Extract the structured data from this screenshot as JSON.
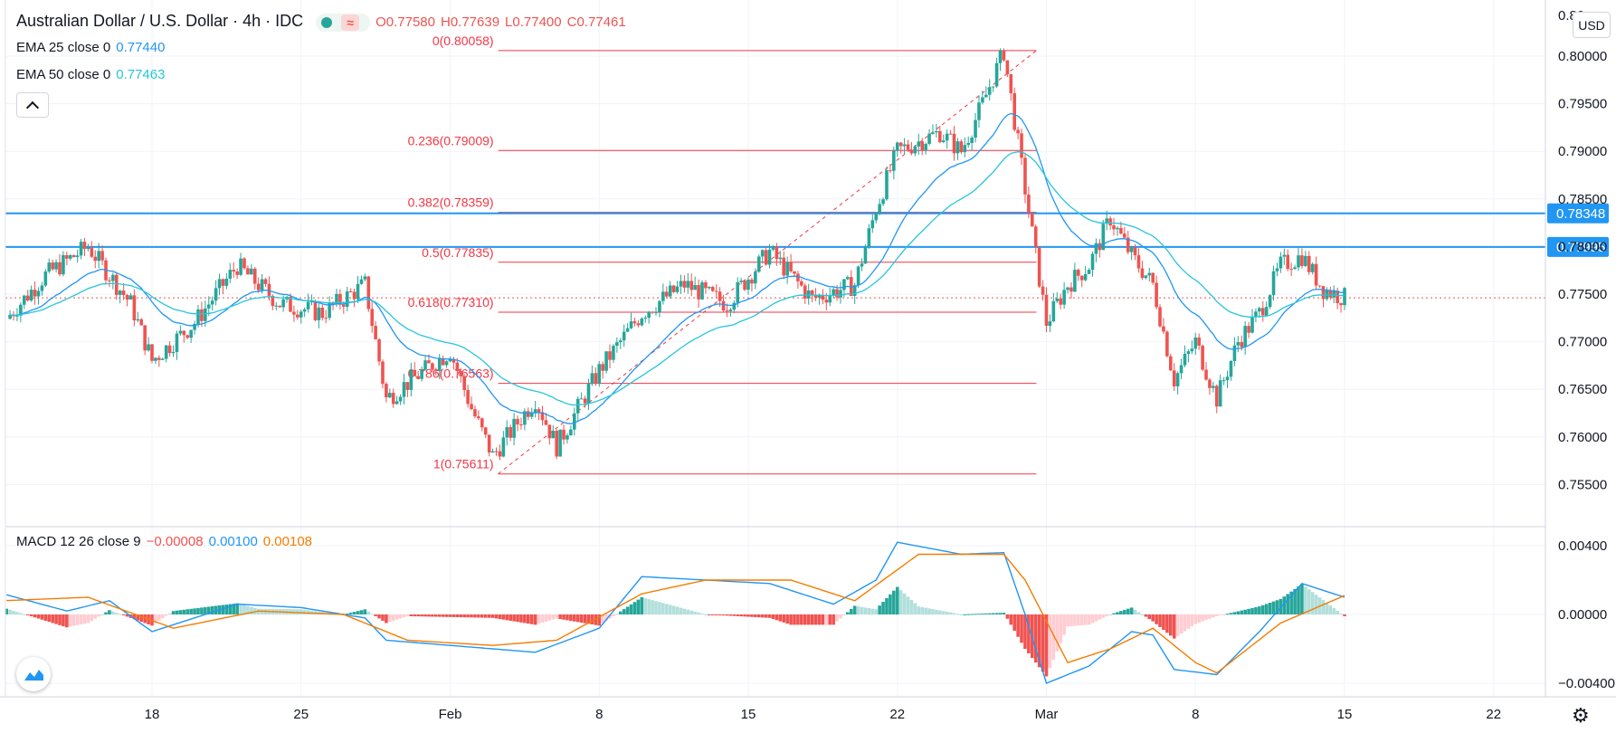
{
  "header": {
    "symbol": "Australian Dollar / U.S. Dollar · 4h · IDC",
    "open": "O0.77580",
    "high": "H0.77639",
    "low": "L0.77400",
    "close": "C0.77461"
  },
  "indicators": {
    "ema25": {
      "label": "EMA 25 close 0",
      "value": "0.77440",
      "color": "#2196f3"
    },
    "ema50": {
      "label": "EMA 50 close 0",
      "value": "0.77463",
      "color": "#26c6da"
    },
    "macd": {
      "label": "MACD 12 26 close 9",
      "hist": "−0.00008",
      "macd_value": "0.00100",
      "signal_value": "0.00108",
      "macd_color": "#2196f3",
      "signal_color": "#f57c00"
    }
  },
  "price_axis": {
    "currency": "USD",
    "top_clip_label": "0.80",
    "ticks": [
      "0.80000",
      "0.79500",
      "0.79000",
      "0.78500",
      "0.78000",
      "0.77500",
      "0.77000",
      "0.76500",
      "0.76000",
      "0.75500"
    ],
    "badges": [
      {
        "text": "0.78348",
        "value": 0.78348
      },
      {
        "text": "0.77995",
        "value": 0.77995
      }
    ]
  },
  "macd_axis": {
    "ticks": [
      "0.00400",
      "0.00000",
      "−0.00400"
    ]
  },
  "time_axis": {
    "labels": [
      "18",
      "25",
      "Feb",
      "8",
      "15",
      "22",
      "Mar",
      "8",
      "15",
      "22"
    ]
  },
  "fibonacci": [
    {
      "label": "0(0.80058)",
      "value": 0.80058
    },
    {
      "label": "0.236(0.79009)",
      "value": 0.79009
    },
    {
      "label": "0.382(0.78359)",
      "value": 0.78359
    },
    {
      "label": "0.5(0.77835)",
      "value": 0.77835
    },
    {
      "label": "0.618(0.77310)",
      "value": 0.7731
    },
    {
      "label": "0.786(0.76563)",
      "value": 0.76563
    },
    {
      "label": "1(0.75611)",
      "value": 0.75611
    }
  ],
  "colors": {
    "up": "#26a69a",
    "down": "#ef5350",
    "hline": "#2196f3",
    "fib": "#f23645"
  },
  "chart_data": {
    "type": "candlestick",
    "timeframe": "4h",
    "current_price": 0.77461,
    "horizontal_levels": [
      0.78348,
      0.77995
    ],
    "price_waypoints": [
      [
        "2021-01-11",
        0.772
      ],
      [
        "2021-01-13",
        0.777
      ],
      [
        "2021-01-15",
        0.78
      ],
      [
        "2021-01-17",
        0.774
      ],
      [
        "2021-01-18",
        0.768
      ],
      [
        "2021-01-20",
        0.772
      ],
      [
        "2021-01-22",
        0.778
      ],
      [
        "2021-01-24",
        0.774
      ],
      [
        "2021-01-26",
        0.773
      ],
      [
        "2021-01-28",
        0.776
      ],
      [
        "2021-01-29",
        0.764
      ],
      [
        "2021-02-01",
        0.769
      ],
      [
        "2021-02-02",
        0.763
      ],
      [
        "2021-02-03",
        0.758
      ],
      [
        "2021-02-05",
        0.764
      ],
      [
        "2021-02-06",
        0.759
      ],
      [
        "2021-02-08",
        0.767
      ],
      [
        "2021-02-10",
        0.773
      ],
      [
        "2021-02-12",
        0.776
      ],
      [
        "2021-02-14",
        0.774
      ],
      [
        "2021-02-16",
        0.7795
      ],
      [
        "2021-02-18",
        0.7745
      ],
      [
        "2021-02-20",
        0.776
      ],
      [
        "2021-02-21",
        0.784
      ],
      [
        "2021-02-22",
        0.79
      ],
      [
        "2021-02-24",
        0.792
      ],
      [
        "2021-02-25",
        0.79
      ],
      [
        "2021-02-26",
        0.795
      ],
      [
        "2021-02-27",
        0.8005
      ],
      [
        "2021-02-28",
        0.786
      ],
      [
        "2021-03-01",
        0.772
      ],
      [
        "2021-03-02",
        0.776
      ],
      [
        "2021-03-03",
        0.778
      ],
      [
        "2021-03-04",
        0.783
      ],
      [
        "2021-03-05",
        0.779
      ],
      [
        "2021-03-06",
        0.776
      ],
      [
        "2021-03-07",
        0.766
      ],
      [
        "2021-03-08",
        0.77
      ],
      [
        "2021-03-09",
        0.764
      ],
      [
        "2021-03-10",
        0.77
      ],
      [
        "2021-03-11",
        0.773
      ],
      [
        "2021-03-12",
        0.778
      ],
      [
        "2021-03-13",
        0.779
      ],
      [
        "2021-03-14",
        0.7755
      ],
      [
        "2021-03-15",
        0.77461
      ]
    ],
    "macd_waypoints": [
      [
        "2021-01-11",
        0.0012
      ],
      [
        "2021-01-14",
        0.0002
      ],
      [
        "2021-01-16",
        0.0008
      ],
      [
        "2021-01-18",
        -0.001
      ],
      [
        "2021-01-22",
        0.0006
      ],
      [
        "2021-01-25",
        0.0004
      ],
      [
        "2021-01-28",
        -0.0002
      ],
      [
        "2021-01-29",
        -0.0015
      ],
      [
        "2021-02-01",
        -0.0018
      ],
      [
        "2021-02-05",
        -0.0022
      ],
      [
        "2021-02-08",
        -0.0008
      ],
      [
        "2021-02-10",
        0.0022
      ],
      [
        "2021-02-13",
        0.002
      ],
      [
        "2021-02-16",
        0.0018
      ],
      [
        "2021-02-19",
        0.0006
      ],
      [
        "2021-02-21",
        0.002
      ],
      [
        "2021-02-22",
        0.0042
      ],
      [
        "2021-02-25",
        0.0035
      ],
      [
        "2021-02-27",
        0.0036
      ],
      [
        "2021-02-28",
        0.0
      ],
      [
        "2021-03-01",
        -0.004
      ],
      [
        "2021-03-03",
        -0.003
      ],
      [
        "2021-03-05",
        -0.001
      ],
      [
        "2021-03-06",
        -0.0012
      ],
      [
        "2021-03-07",
        -0.0032
      ],
      [
        "2021-03-09",
        -0.0035
      ],
      [
        "2021-03-11",
        -0.001
      ],
      [
        "2021-03-13",
        0.0018
      ],
      [
        "2021-03-15",
        0.001
      ]
    ],
    "signal_waypoints": [
      [
        "2021-01-11",
        0.0008
      ],
      [
        "2021-01-15",
        0.001
      ],
      [
        "2021-01-19",
        -0.0008
      ],
      [
        "2021-01-23",
        0.0002
      ],
      [
        "2021-01-27",
        0.0
      ],
      [
        "2021-01-30",
        -0.0015
      ],
      [
        "2021-02-03",
        -0.0018
      ],
      [
        "2021-02-06",
        -0.0015
      ],
      [
        "2021-02-10",
        0.0012
      ],
      [
        "2021-02-13",
        0.002
      ],
      [
        "2021-02-17",
        0.002
      ],
      [
        "2021-02-20",
        0.0008
      ],
      [
        "2021-02-23",
        0.0035
      ],
      [
        "2021-02-27",
        0.0035
      ],
      [
        "2021-02-28",
        0.002
      ],
      [
        "2021-03-02",
        -0.0028
      ],
      [
        "2021-03-04",
        -0.002
      ],
      [
        "2021-03-06",
        -0.0008
      ],
      [
        "2021-03-08",
        -0.0028
      ],
      [
        "2021-03-09",
        -0.0034
      ],
      [
        "2021-03-12",
        -0.0005
      ],
      [
        "2021-03-15",
        0.0011
      ]
    ]
  }
}
